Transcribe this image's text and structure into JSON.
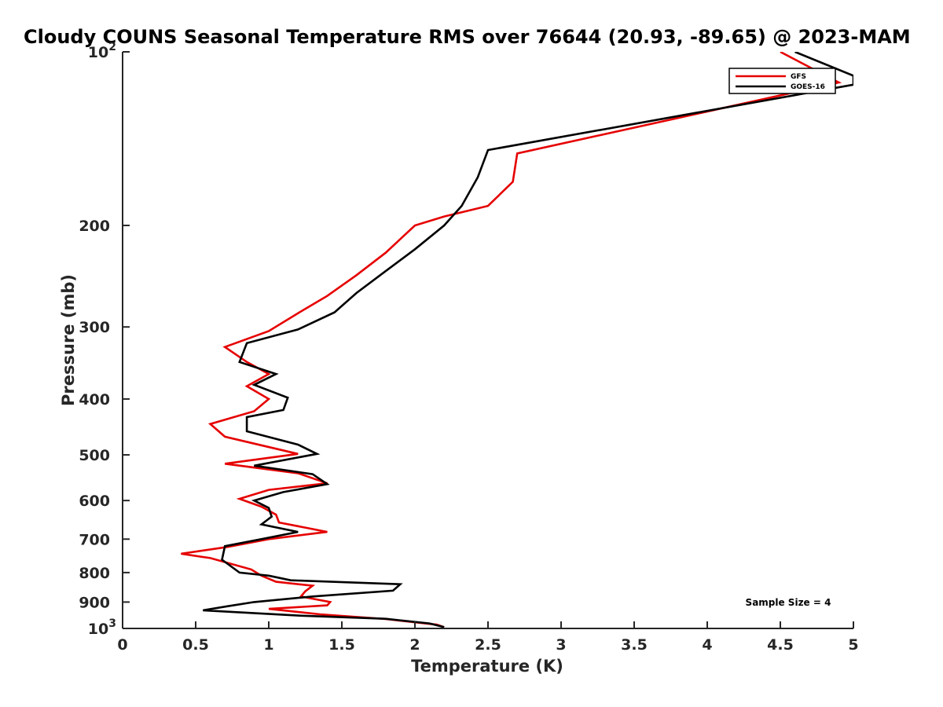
{
  "chart_data": {
    "type": "line",
    "title": "Cloudy COUNS Seasonal Temperature RMS over 76644 (20.93, -89.65) @ 2023-MAM",
    "xlabel": "Temperature (K)",
    "ylabel": "Pressure (mb)",
    "xlim": [
      0,
      5
    ],
    "ylim": [
      1000,
      100
    ],
    "yscale": "log",
    "x_ticks": [
      "0",
      "0.5",
      "1",
      "1.5",
      "2",
      "2.5",
      "3",
      "3.5",
      "4",
      "4.5",
      "5"
    ],
    "y_ticks": [
      {
        "value": 100,
        "base": "10",
        "exp": "2"
      },
      {
        "value": 200,
        "label": "200"
      },
      {
        "value": 300,
        "label": "300"
      },
      {
        "value": 400,
        "label": "400"
      },
      {
        "value": 500,
        "label": "500"
      },
      {
        "value": 600,
        "label": "600"
      },
      {
        "value": 700,
        "label": "700"
      },
      {
        "value": 800,
        "label": "800"
      },
      {
        "value": 900,
        "label": "900"
      },
      {
        "value": 1000,
        "base": "10",
        "exp": "3"
      }
    ],
    "legend_position": "top-right",
    "annotation": "Sample Size = 4",
    "series": [
      {
        "name": "GFS",
        "color": "#e60000",
        "points": [
          [
            4.5,
            100
          ],
          [
            4.9,
            113
          ],
          [
            2.7,
            150
          ],
          [
            2.67,
            168
          ],
          [
            2.5,
            185
          ],
          [
            2.2,
            193
          ],
          [
            2.0,
            200
          ],
          [
            1.8,
            223
          ],
          [
            1.6,
            244
          ],
          [
            1.4,
            265
          ],
          [
            1.2,
            284
          ],
          [
            1.0,
            305
          ],
          [
            0.7,
            325
          ],
          [
            0.85,
            345
          ],
          [
            1.0,
            362
          ],
          [
            0.85,
            380
          ],
          [
            1.0,
            400
          ],
          [
            0.9,
            420
          ],
          [
            0.6,
            442
          ],
          [
            0.7,
            465
          ],
          [
            0.9,
            478
          ],
          [
            1.2,
            498
          ],
          [
            0.7,
            518
          ],
          [
            1.2,
            538
          ],
          [
            1.4,
            560
          ],
          [
            1.0,
            575
          ],
          [
            0.8,
            596
          ],
          [
            0.95,
            615
          ],
          [
            1.05,
            635
          ],
          [
            1.07,
            655
          ],
          [
            1.4,
            680
          ],
          [
            1.0,
            700
          ],
          [
            0.72,
            722
          ],
          [
            0.4,
            742
          ],
          [
            0.6,
            755
          ],
          [
            0.88,
            790
          ],
          [
            0.95,
            810
          ],
          [
            1.05,
            830
          ],
          [
            1.3,
            843
          ],
          [
            1.25,
            862
          ],
          [
            1.22,
            880
          ],
          [
            1.42,
            900
          ],
          [
            1.4,
            912
          ],
          [
            1.0,
            925
          ],
          [
            1.35,
            945
          ],
          [
            1.8,
            963
          ],
          [
            2.15,
            985
          ],
          [
            2.2,
            995
          ]
        ]
      },
      {
        "name": "GOES-16",
        "color": "#000000",
        "points": [
          [
            4.6,
            100
          ],
          [
            5.0,
            110
          ],
          [
            5.0,
            114
          ],
          [
            2.5,
            148
          ],
          [
            2.43,
            165
          ],
          [
            2.32,
            185
          ],
          [
            2.2,
            200
          ],
          [
            2.0,
            220
          ],
          [
            1.8,
            240
          ],
          [
            1.6,
            262
          ],
          [
            1.45,
            283
          ],
          [
            1.2,
            303
          ],
          [
            0.85,
            320
          ],
          [
            0.8,
            345
          ],
          [
            1.05,
            362
          ],
          [
            0.9,
            378
          ],
          [
            1.13,
            398
          ],
          [
            1.1,
            418
          ],
          [
            0.85,
            430
          ],
          [
            0.85,
            455
          ],
          [
            1.2,
            480
          ],
          [
            1.33,
            498
          ],
          [
            0.9,
            522
          ],
          [
            1.3,
            540
          ],
          [
            1.4,
            562
          ],
          [
            1.1,
            580
          ],
          [
            0.9,
            600
          ],
          [
            1.0,
            618
          ],
          [
            1.02,
            640
          ],
          [
            0.95,
            660
          ],
          [
            1.2,
            680
          ],
          [
            0.95,
            700
          ],
          [
            0.7,
            720
          ],
          [
            0.68,
            760
          ],
          [
            0.8,
            800
          ],
          [
            1.0,
            810
          ],
          [
            1.15,
            825
          ],
          [
            1.9,
            838
          ],
          [
            1.85,
            860
          ],
          [
            1.3,
            880
          ],
          [
            0.9,
            900
          ],
          [
            0.72,
            915
          ],
          [
            0.55,
            930
          ],
          [
            1.2,
            950
          ],
          [
            1.8,
            962
          ],
          [
            2.1,
            980
          ],
          [
            2.2,
            995
          ]
        ]
      }
    ]
  }
}
